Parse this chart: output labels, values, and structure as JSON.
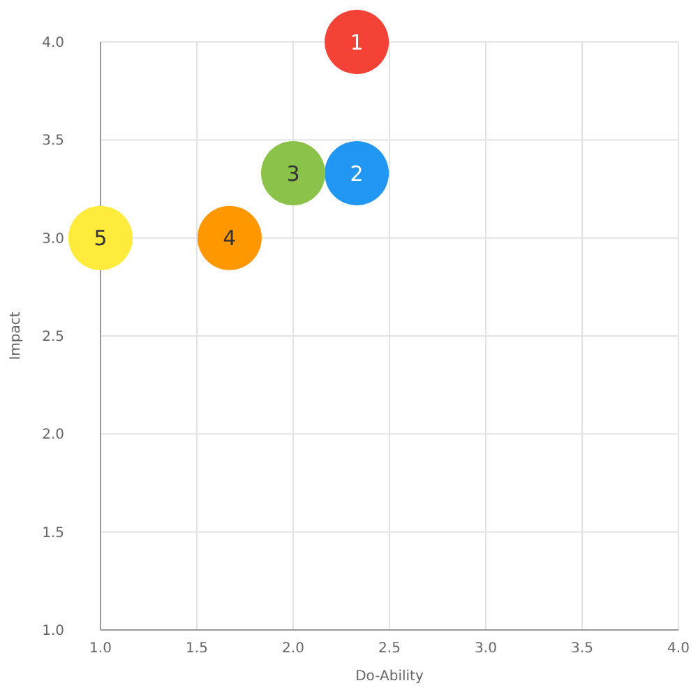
{
  "chart_data": {
    "type": "bubble",
    "xlabel": "Do-Ability",
    "ylabel": "Impact",
    "x": [
      2.33,
      2.33,
      2.0,
      1.67,
      1.0
    ],
    "values": [
      4.0,
      3.33,
      3.33,
      3.0,
      3.0
    ],
    "sizes": [
      1,
      1,
      1,
      1,
      1
    ],
    "colors": [
      "#f44336",
      "#2196f3",
      "#8bc34a",
      "#ff9800",
      "#ffeb3b"
    ],
    "annotations": [
      {
        "text": "1",
        "x": 2.33,
        "y": 4.0
      },
      {
        "text": "2",
        "x": 2.33,
        "y": 3.33
      },
      {
        "text": "3",
        "x": 2.0,
        "y": 3.33
      },
      {
        "text": "4",
        "x": 1.67,
        "y": 3.0
      },
      {
        "text": "5",
        "x": 1.0,
        "y": 3.0
      }
    ],
    "xlim": [
      1,
      4
    ],
    "ylim": [
      1,
      4
    ],
    "xticks": [
      {
        "value": 1,
        "label": "1.0"
      },
      {
        "value": 1.5,
        "label": "1.5"
      },
      {
        "value": 2,
        "label": "2.0"
      },
      {
        "value": 2.5,
        "label": "2.5"
      },
      {
        "value": 3,
        "label": "3.0"
      },
      {
        "value": 3.5,
        "label": "3.5"
      },
      {
        "value": 4,
        "label": "4.0"
      }
    ],
    "yticks": [
      {
        "value": 1,
        "label": "1.0"
      },
      {
        "value": 1.5,
        "label": "1.5"
      },
      {
        "value": 2,
        "label": "2.0"
      },
      {
        "value": 2.5,
        "label": "2.5"
      },
      {
        "value": 3,
        "label": "3.0"
      },
      {
        "value": 3.5,
        "label": "3.5"
      },
      {
        "value": 4,
        "label": "4.0"
      }
    ],
    "grid": true
  }
}
